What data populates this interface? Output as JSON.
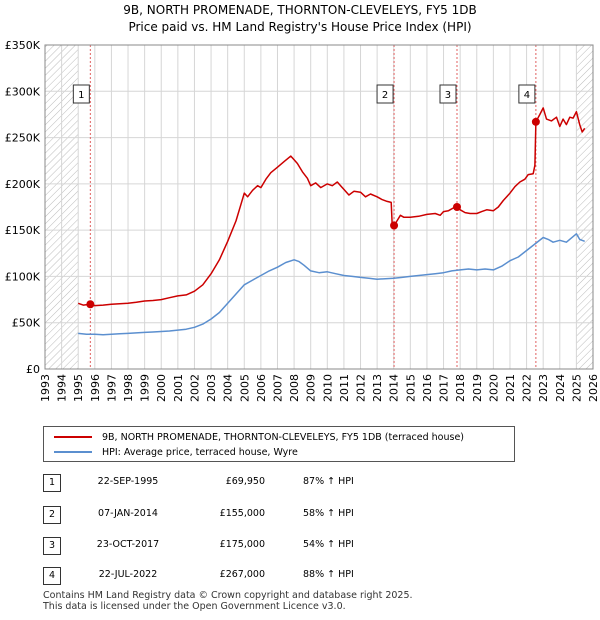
{
  "title_line1": "9B, NORTH PROMENADE, THORNTON-CLEVELEYS, FY5 1DB",
  "title_line2": "Price paid vs. HM Land Registry's House Price Index (HPI)",
  "chart_data": {
    "type": "line",
    "ylabel": "",
    "xlabel": "",
    "ylim": [
      0,
      350000
    ],
    "xlim": [
      1993,
      2026
    ],
    "y_ticks": [
      {
        "value": 0,
        "label": "£0"
      },
      {
        "value": 50000,
        "label": "£50K"
      },
      {
        "value": 100000,
        "label": "£100K"
      },
      {
        "value": 150000,
        "label": "£150K"
      },
      {
        "value": 200000,
        "label": "£200K"
      },
      {
        "value": 250000,
        "label": "£250K"
      },
      {
        "value": 300000,
        "label": "£300K"
      },
      {
        "value": 350000,
        "label": "£350K"
      }
    ],
    "x_ticks": [
      "1993",
      "1994",
      "1995",
      "1996",
      "1997",
      "1998",
      "1999",
      "2000",
      "2001",
      "2002",
      "2003",
      "2004",
      "2005",
      "2006",
      "2007",
      "2008",
      "2009",
      "2010",
      "2011",
      "2012",
      "2013",
      "2014",
      "2015",
      "2016",
      "2017",
      "2018",
      "2019",
      "2020",
      "2021",
      "2022",
      "2023",
      "2024",
      "2025",
      "2026"
    ],
    "hatched_ranges": [
      [
        1993,
        1995.0
      ],
      [
        2025.0,
        2026
      ]
    ],
    "series": [
      {
        "name": "9B, NORTH PROMENADE, THORNTON-CLEVELEYS, FY5 1DB (terraced house)",
        "color": "#cc0000",
        "points": [
          [
            1995.0,
            71000
          ],
          [
            1995.3,
            69000
          ],
          [
            1995.73,
            69950
          ],
          [
            1996.0,
            68500
          ],
          [
            1996.5,
            69000
          ],
          [
            1997.0,
            70000
          ],
          [
            1997.5,
            70500
          ],
          [
            1998.0,
            71000
          ],
          [
            1998.5,
            72000
          ],
          [
            1999.0,
            73500
          ],
          [
            1999.5,
            74000
          ],
          [
            2000.0,
            75000
          ],
          [
            2000.5,
            77000
          ],
          [
            2001.0,
            79000
          ],
          [
            2001.5,
            80000
          ],
          [
            2002.0,
            84000
          ],
          [
            2002.5,
            91000
          ],
          [
            2003.0,
            103000
          ],
          [
            2003.5,
            118000
          ],
          [
            2004.0,
            138000
          ],
          [
            2004.5,
            160000
          ],
          [
            2004.8,
            178000
          ],
          [
            2005.0,
            190000
          ],
          [
            2005.2,
            186000
          ],
          [
            2005.5,
            193000
          ],
          [
            2005.8,
            198000
          ],
          [
            2006.0,
            196000
          ],
          [
            2006.3,
            205000
          ],
          [
            2006.6,
            212000
          ],
          [
            2007.0,
            218000
          ],
          [
            2007.4,
            224000
          ],
          [
            2007.8,
            230000
          ],
          [
            2008.0,
            226000
          ],
          [
            2008.2,
            222000
          ],
          [
            2008.5,
            213000
          ],
          [
            2008.8,
            206000
          ],
          [
            2009.0,
            198000
          ],
          [
            2009.3,
            201000
          ],
          [
            2009.6,
            196000
          ],
          [
            2010.0,
            200000
          ],
          [
            2010.3,
            198000
          ],
          [
            2010.6,
            202000
          ],
          [
            2010.8,
            198000
          ],
          [
            2011.0,
            194000
          ],
          [
            2011.3,
            188000
          ],
          [
            2011.6,
            192000
          ],
          [
            2012.0,
            191000
          ],
          [
            2012.3,
            186000
          ],
          [
            2012.6,
            189000
          ],
          [
            2013.0,
            186000
          ],
          [
            2013.3,
            183000
          ],
          [
            2013.6,
            181000
          ],
          [
            2013.85,
            180000
          ],
          [
            2013.9,
            158000
          ],
          [
            2014.02,
            155000
          ],
          [
            2014.2,
            160000
          ],
          [
            2014.4,
            166000
          ],
          [
            2014.6,
            164000
          ],
          [
            2015.0,
            164000
          ],
          [
            2015.5,
            165000
          ],
          [
            2016.0,
            167000
          ],
          [
            2016.5,
            168000
          ],
          [
            2016.8,
            166000
          ],
          [
            2017.0,
            170000
          ],
          [
            2017.3,
            171000
          ],
          [
            2017.6,
            174000
          ],
          [
            2017.81,
            175000
          ],
          [
            2018.0,
            172000
          ],
          [
            2018.3,
            169000
          ],
          [
            2018.6,
            168000
          ],
          [
            2019.0,
            168000
          ],
          [
            2019.3,
            170000
          ],
          [
            2019.6,
            172000
          ],
          [
            2020.0,
            171000
          ],
          [
            2020.3,
            175000
          ],
          [
            2020.6,
            182000
          ],
          [
            2021.0,
            190000
          ],
          [
            2021.3,
            197000
          ],
          [
            2021.6,
            202000
          ],
          [
            2021.9,
            205000
          ],
          [
            2022.1,
            210000
          ],
          [
            2022.4,
            211000
          ],
          [
            2022.5,
            220000
          ],
          [
            2022.56,
            267000
          ],
          [
            2022.8,
            275000
          ],
          [
            2023.0,
            282000
          ],
          [
            2023.2,
            270000
          ],
          [
            2023.5,
            268000
          ],
          [
            2023.8,
            272000
          ],
          [
            2024.0,
            262000
          ],
          [
            2024.2,
            270000
          ],
          [
            2024.4,
            264000
          ],
          [
            2024.6,
            272000
          ],
          [
            2024.8,
            271000
          ],
          [
            2025.0,
            278000
          ],
          [
            2025.2,
            264000
          ],
          [
            2025.35,
            256000
          ],
          [
            2025.5,
            260000
          ]
        ]
      },
      {
        "name": "HPI: Average price, terraced house, Wyre",
        "color": "#5b8fcf",
        "points": [
          [
            1995.0,
            38500
          ],
          [
            1995.5,
            37500
          ],
          [
            1996.0,
            37500
          ],
          [
            1996.5,
            37000
          ],
          [
            1997.0,
            37500
          ],
          [
            1997.5,
            38000
          ],
          [
            1998.0,
            38500
          ],
          [
            1998.5,
            39000
          ],
          [
            1999.0,
            39500
          ],
          [
            1999.5,
            40000
          ],
          [
            2000.0,
            40500
          ],
          [
            2000.5,
            41000
          ],
          [
            2001.0,
            42000
          ],
          [
            2001.5,
            43000
          ],
          [
            2002.0,
            45000
          ],
          [
            2002.5,
            48500
          ],
          [
            2003.0,
            54000
          ],
          [
            2003.5,
            61000
          ],
          [
            2004.0,
            71000
          ],
          [
            2004.5,
            81000
          ],
          [
            2005.0,
            91000
          ],
          [
            2005.5,
            96000
          ],
          [
            2006.0,
            101000
          ],
          [
            2006.5,
            106000
          ],
          [
            2007.0,
            110000
          ],
          [
            2007.5,
            115000
          ],
          [
            2008.0,
            118000
          ],
          [
            2008.3,
            116000
          ],
          [
            2008.6,
            112000
          ],
          [
            2009.0,
            106000
          ],
          [
            2009.5,
            104000
          ],
          [
            2010.0,
            105000
          ],
          [
            2010.5,
            103000
          ],
          [
            2011.0,
            101000
          ],
          [
            2011.5,
            100000
          ],
          [
            2012.0,
            99000
          ],
          [
            2012.5,
            98000
          ],
          [
            2013.0,
            97000
          ],
          [
            2013.5,
            97500
          ],
          [
            2014.0,
            98000
          ],
          [
            2014.5,
            99000
          ],
          [
            2015.0,
            100000
          ],
          [
            2015.5,
            101000
          ],
          [
            2016.0,
            102000
          ],
          [
            2016.5,
            103000
          ],
          [
            2017.0,
            104000
          ],
          [
            2017.5,
            106000
          ],
          [
            2018.0,
            107000
          ],
          [
            2018.5,
            108000
          ],
          [
            2019.0,
            107000
          ],
          [
            2019.5,
            108000
          ],
          [
            2020.0,
            107000
          ],
          [
            2020.5,
            111000
          ],
          [
            2021.0,
            117000
          ],
          [
            2021.5,
            121000
          ],
          [
            2022.0,
            128000
          ],
          [
            2022.5,
            135000
          ],
          [
            2023.0,
            142000
          ],
          [
            2023.3,
            140000
          ],
          [
            2023.6,
            137000
          ],
          [
            2024.0,
            139000
          ],
          [
            2024.4,
            137000
          ],
          [
            2024.8,
            143000
          ],
          [
            2025.0,
            146000
          ],
          [
            2025.2,
            140000
          ],
          [
            2025.5,
            138000
          ]
        ]
      }
    ],
    "sale_markers": [
      {
        "label": "1",
        "x": 1995.73,
        "y": 69950
      },
      {
        "label": "2",
        "x": 2014.02,
        "y": 155000
      },
      {
        "label": "3",
        "x": 2017.81,
        "y": 175000
      },
      {
        "label": "4",
        "x": 2022.56,
        "y": 267000
      }
    ]
  },
  "legend": {
    "property_label": "9B, NORTH PROMENADE, THORNTON-CLEVELEYS, FY5 1DB (terraced house)",
    "hpi_label": "HPI: Average price, terraced house, Wyre",
    "property_color": "#cc0000",
    "hpi_color": "#5b8fcf"
  },
  "sales": [
    {
      "num": "1",
      "date": "22-SEP-1995",
      "price": "£69,950",
      "hpi": "87% ↑ HPI"
    },
    {
      "num": "2",
      "date": "07-JAN-2014",
      "price": "£155,000",
      "hpi": "58% ↑ HPI"
    },
    {
      "num": "3",
      "date": "23-OCT-2017",
      "price": "£175,000",
      "hpi": "54% ↑ HPI"
    },
    {
      "num": "4",
      "date": "22-JUL-2022",
      "price": "£267,000",
      "hpi": "88% ↑ HPI"
    }
  ],
  "footer_line1": "Contains HM Land Registry data © Crown copyright and database right 2025.",
  "footer_line2": "This data is licensed under the Open Government Licence v3.0."
}
